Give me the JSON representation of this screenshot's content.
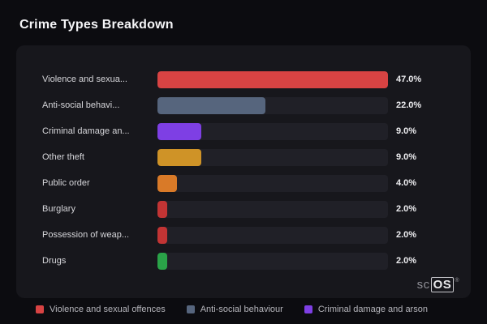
{
  "page": {
    "title": "Crime Types Breakdown"
  },
  "chart_data": {
    "type": "bar",
    "orientation": "horizontal",
    "title": "Crime Types Breakdown",
    "categories": [
      "Violence and sexua...",
      "Anti-social behavi...",
      "Criminal damage an...",
      "Other theft",
      "Public order",
      "Burglary",
      "Possession of weap...",
      "Drugs"
    ],
    "values": [
      47.0,
      22.0,
      9.0,
      9.0,
      4.0,
      2.0,
      2.0,
      2.0
    ],
    "value_labels": [
      "47.0%",
      "22.0%",
      "9.0%",
      "9.0%",
      "4.0%",
      "2.0%",
      "2.0%",
      "2.0%"
    ],
    "bar_colors": [
      "#d84343",
      "#56657d",
      "#7e3fe4",
      "#cf9327",
      "#d97a28",
      "#c23434",
      "#c23434",
      "#2aa348"
    ],
    "max_value": 47.0,
    "grid": false,
    "legend_position": "bottom",
    "legend": [
      {
        "label": "Violence and sexual offences",
        "color": "#d84343"
      },
      {
        "label": "Anti-social behaviour",
        "color": "#56657d"
      },
      {
        "label": "Criminal damage and arson",
        "color": "#7e3fe4"
      }
    ]
  },
  "branding": {
    "prefix": "sc",
    "suffix": "OS",
    "registered": "®"
  }
}
